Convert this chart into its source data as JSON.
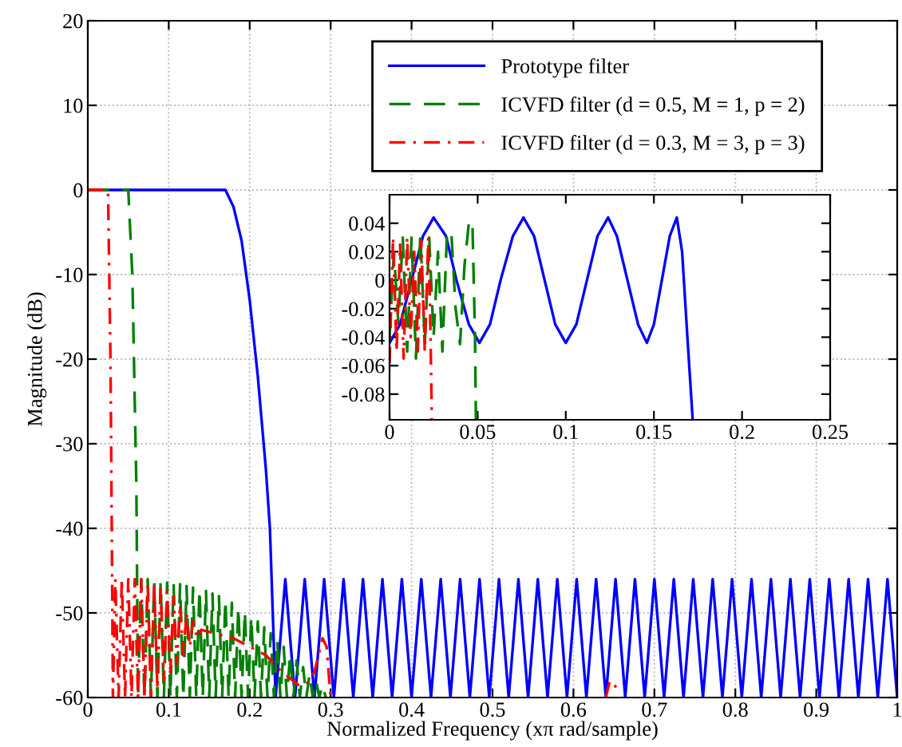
{
  "chart_data": [
    {
      "type": "line",
      "xlabel": "Normalized Frequency (xπ rad/sample)",
      "ylabel": "Magnitude (dB)",
      "xlim": [
        0,
        1
      ],
      "ylim": [
        -60,
        20
      ],
      "xticks": [
        0,
        0.1,
        0.2,
        0.3,
        0.4,
        0.5,
        0.6,
        0.7,
        0.8,
        0.9,
        1
      ],
      "yticks": [
        -60,
        -50,
        -40,
        -30,
        -20,
        -10,
        0,
        10,
        20
      ],
      "grid": true,
      "legend": "top right",
      "series": [
        {
          "name": "Prototype filter",
          "color": "#0000ff",
          "line_style": "solid",
          "x": [
            0,
            0.05,
            0.1,
            0.15,
            0.17,
            0.18,
            0.19,
            0.2,
            0.21,
            0.22,
            0.225,
            0.232,
            0.244,
            0.256,
            0.268,
            0.28,
            0.292,
            0.304,
            0.316,
            0.328,
            0.34,
            0.352,
            0.364,
            0.376,
            0.388,
            0.4,
            0.412,
            0.424,
            0.436,
            0.448,
            0.46,
            0.472,
            0.484,
            0.496,
            0.508,
            0.52,
            0.532,
            0.544,
            0.556,
            0.568,
            0.58,
            0.592,
            0.604,
            0.616,
            0.628,
            0.64,
            0.652,
            0.664,
            0.676,
            0.688,
            0.7,
            0.712,
            0.724,
            0.736,
            0.748,
            0.76,
            0.772,
            0.784,
            0.796,
            0.808,
            0.82,
            0.832,
            0.844,
            0.856,
            0.868,
            0.88,
            0.892,
            0.904,
            0.916,
            0.928,
            0.94,
            0.952,
            0.964,
            0.976,
            0.988,
            1.0
          ],
          "values": [
            0,
            0,
            0,
            0,
            0,
            -2,
            -6,
            -13,
            -22,
            -33,
            -40,
            -60,
            -46,
            -60,
            -46,
            -60,
            -46,
            -60,
            -46,
            -60,
            -46,
            -60,
            -46,
            -60,
            -46,
            -60,
            -46,
            -60,
            -46,
            -60,
            -46,
            -60,
            -46,
            -60,
            -46,
            -60,
            -46,
            -60,
            -46,
            -60,
            -46,
            -60,
            -46,
            -60,
            -46,
            -60,
            -46,
            -60,
            -46,
            -60,
            -46,
            -60,
            -46,
            -60,
            -46,
            -60,
            -46,
            -60,
            -46,
            -60,
            -46,
            -60,
            -46,
            -60,
            -46,
            -60,
            -46,
            -60,
            -46,
            -60,
            -46,
            -60,
            -46,
            -60,
            -46,
            -60
          ]
        },
        {
          "name": "ICVFD filter (d = 0.5, M = 1, p = 2)",
          "color": "#008000",
          "line_style": "dashed",
          "x": [
            0,
            0.04,
            0.05,
            0.055,
            0.06,
            0.062,
            0.066,
            0.07,
            0.074,
            0.078,
            0.082,
            0.086,
            0.09,
            0.094,
            0.098,
            0.102,
            0.106,
            0.11,
            0.114,
            0.118,
            0.122,
            0.126,
            0.13,
            0.134,
            0.138,
            0.142,
            0.146,
            0.15,
            0.154,
            0.158,
            0.162,
            0.166,
            0.17,
            0.174,
            0.178,
            0.182,
            0.186,
            0.19,
            0.194,
            0.198,
            0.202,
            0.206,
            0.21,
            0.214,
            0.218,
            0.222,
            0.226,
            0.23,
            0.234,
            0.238,
            0.242,
            0.246,
            0.25,
            0.254,
            0.258,
            0.262,
            0.266,
            0.27,
            0.274,
            0.278,
            0.282,
            0.286,
            0.29,
            0.294
          ],
          "values": [
            0,
            0,
            0,
            -10,
            -35,
            -60,
            -46,
            -60,
            -46,
            -60,
            -46.2,
            -60,
            -46.3,
            -60,
            -46.4,
            -60,
            -46.5,
            -60,
            -46.6,
            -60,
            -46.8,
            -60,
            -47,
            -60,
            -47.2,
            -60,
            -47.4,
            -60,
            -47.7,
            -60,
            -48,
            -60,
            -48.4,
            -60,
            -48.8,
            -60,
            -49.3,
            -60,
            -49.8,
            -60,
            -50.4,
            -60,
            -51,
            -60,
            -51.7,
            -60,
            -52.4,
            -60,
            -53.2,
            -60,
            -54,
            -60,
            -54.8,
            -60,
            -55.6,
            -60,
            -56.4,
            -60,
            -57.2,
            -60,
            -58,
            -60,
            -58.5,
            -60
          ]
        },
        {
          "name": "ICVFD filter (d = 0.3, M = 3, p = 3)",
          "color": "#ff0000",
          "line_style": "dashdot",
          "x": [
            0,
            0.02,
            0.025,
            0.028,
            0.03,
            0.031,
            0.034,
            0.038,
            0.042,
            0.046,
            0.05,
            0.054,
            0.058,
            0.062,
            0.066,
            0.07,
            0.074,
            0.078,
            0.082,
            0.086,
            0.09,
            0.094,
            0.098,
            0.102,
            0.106,
            0.11,
            0.114,
            0.118,
            0.122,
            0.126,
            0.13,
            0.135,
            0.14,
            0.18,
            0.2,
            0.22,
            0.24,
            0.26,
            0.27,
            0.28,
            0.29,
            0.295,
            0.3,
            0.5,
            0.64,
            0.645,
            0.655
          ],
          "values": [
            0,
            0,
            0,
            -20,
            -45,
            -60,
            -46,
            -60,
            -46,
            -60,
            -46,
            -60,
            -46,
            -60,
            -46,
            -60,
            -46.3,
            -60,
            -46.6,
            -59,
            -47,
            -58,
            -47.5,
            -57,
            -48,
            -56,
            -49,
            -55,
            -50,
            -54,
            -51,
            -53,
            -52,
            -53,
            -54,
            -55,
            -57,
            -58.5,
            -58.5,
            -57,
            -53,
            -54,
            -60,
            null,
            -60,
            -58,
            -59
          ]
        }
      ]
    },
    {
      "type": "line",
      "xlim": [
        0,
        0.25
      ],
      "ylim": [
        -0.098,
        0.06
      ],
      "xticks": [
        0,
        0.05,
        0.1,
        0.15,
        0.2,
        0.25
      ],
      "yticks": [
        -0.08,
        -0.06,
        -0.04,
        -0.02,
        0,
        0.02,
        0.04
      ],
      "grid": false,
      "series": [
        {
          "color": "#0000ff",
          "line_style": "solid",
          "x": [
            0,
            0.006,
            0.0125,
            0.019,
            0.025,
            0.032,
            0.038,
            0.045,
            0.051,
            0.057,
            0.063,
            0.07,
            0.076,
            0.082,
            0.088,
            0.094,
            0.1,
            0.106,
            0.112,
            0.118,
            0.124,
            0.129,
            0.135,
            0.141,
            0.146,
            0.15,
            0.1545,
            0.159,
            0.163,
            0.166,
            0.169,
            0.172
          ],
          "values": [
            -0.044,
            -0.031,
            0,
            0.031,
            0.044,
            0.031,
            0,
            -0.031,
            -0.044,
            -0.031,
            0,
            0.031,
            0.044,
            0.031,
            0,
            -0.031,
            -0.044,
            -0.031,
            0,
            0.031,
            0.044,
            0.031,
            0,
            -0.031,
            -0.044,
            -0.031,
            0,
            0.031,
            0.044,
            0.02,
            -0.04,
            -0.098
          ]
        },
        {
          "color": "#008000",
          "line_style": "dashed",
          "x": [
            0,
            0.0025,
            0.005,
            0.0075,
            0.01,
            0.0125,
            0.015,
            0.0175,
            0.02,
            0.0225,
            0.025,
            0.0275,
            0.03,
            0.0325,
            0.035,
            0.0375,
            0.04,
            0.0425,
            0.045,
            0.047,
            0.0485,
            0.049
          ],
          "values": [
            -0.04,
            0.02,
            -0.03,
            0.03,
            -0.05,
            0.03,
            -0.055,
            0.033,
            -0.045,
            0.03,
            -0.04,
            0.02,
            -0.05,
            0.03,
            0.035,
            -0.02,
            -0.045,
            0.01,
            0.04,
            0.042,
            -0.04,
            -0.098
          ]
        },
        {
          "color": "#ff0000",
          "line_style": "dashdot",
          "x": [
            0,
            0.002,
            0.004,
            0.006,
            0.008,
            0.01,
            0.012,
            0.014,
            0.016,
            0.018,
            0.02,
            0.022,
            0.023,
            0.024
          ],
          "values": [
            -0.058,
            0.03,
            -0.05,
            0.025,
            -0.055,
            0.03,
            -0.04,
            0.02,
            -0.05,
            0.028,
            -0.05,
            0.03,
            -0.02,
            -0.098
          ]
        }
      ]
    }
  ]
}
